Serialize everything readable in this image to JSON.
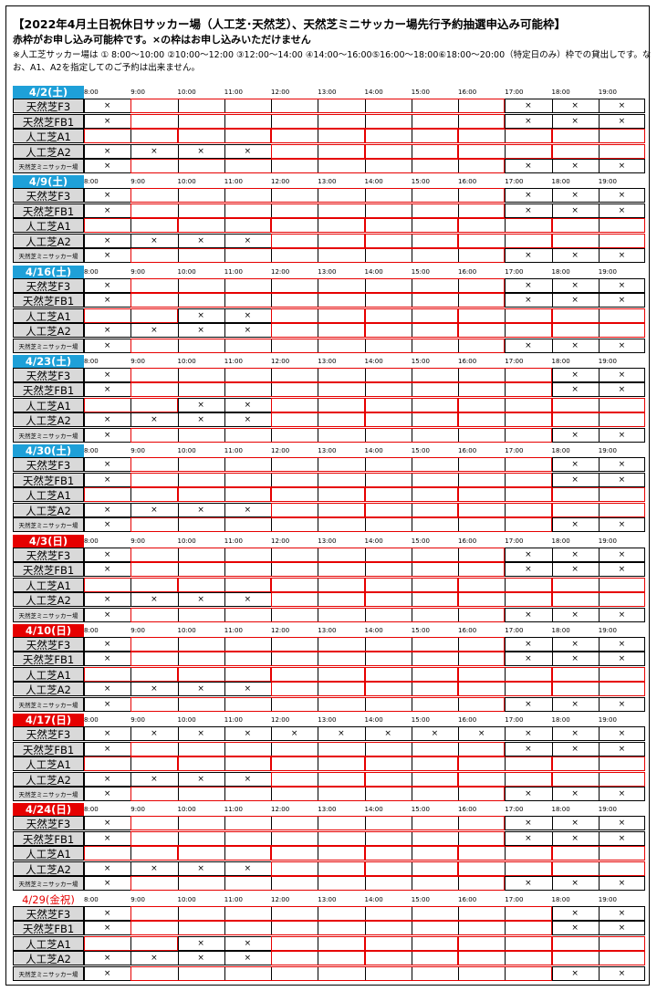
{
  "header": {
    "title": "【2022年4月土日祝休日サッカー場（人工芝･天然芝）、天然芝ミニサッカー場先行予約抽選申込み可能枠】",
    "subtitle": "赤枠がお申し込み可能枠です。×の枠はお申し込みいただけません",
    "note_line1": "※人工芝サッカー場は ① 8:00～10:00 ②10:00～12:00 ③12:00～14:00 ④14:00～16:00⑤16:00～18:00⑥18:00～20:00（特定日のみ）枠での貸出しです。な",
    "note_line2": "お、A1、A2を指定してのご予約は出来ません。"
  },
  "times": [
    "8:00",
    "9:00",
    "10:00",
    "11:00",
    "12:00",
    "13:00",
    "14:00",
    "15:00",
    "16:00",
    "17:00",
    "18:00",
    "19:00"
  ],
  "courts": [
    "天然芝F3",
    "天然芝FB1",
    "人工芝A1",
    "人工芝A2",
    "天然芝ミニサッカー場"
  ],
  "colors": {
    "saturday": "#1ea0d8",
    "sunday": "#e60000",
    "available_border": "#e60000",
    "label_bg": "#d9d9d9"
  },
  "days": [
    {
      "date": "4/2(土)",
      "type": "sat",
      "rows": [
        {
          "x": [
            0,
            9,
            10,
            11
          ],
          "r": [
            [
              1,
              9
            ]
          ]
        },
        {
          "x": [
            0,
            9,
            10,
            11
          ],
          "r": [
            [
              1,
              9
            ]
          ]
        },
        {
          "x": [],
          "r": [
            [
              0,
              2
            ],
            [
              2,
              4
            ],
            [
              4,
              6
            ],
            [
              6,
              8
            ],
            [
              8,
              10
            ],
            [
              10,
              12
            ]
          ]
        },
        {
          "x": [
            0,
            1,
            2,
            3
          ],
          "r": [
            [
              4,
              6
            ],
            [
              6,
              8
            ],
            [
              8,
              10
            ],
            [
              10,
              12
            ]
          ]
        },
        {
          "x": [
            0,
            9,
            10,
            11
          ],
          "r": [
            [
              1,
              9
            ]
          ]
        }
      ]
    },
    {
      "date": "4/9(土)",
      "type": "sat",
      "rows": [
        {
          "x": [
            0,
            9,
            10,
            11
          ],
          "r": [
            [
              1,
              9
            ]
          ]
        },
        {
          "x": [
            0,
            9,
            10,
            11
          ],
          "r": [
            [
              1,
              9
            ]
          ]
        },
        {
          "x": [],
          "r": [
            [
              0,
              2
            ],
            [
              2,
              4
            ],
            [
              4,
              6
            ],
            [
              6,
              8
            ],
            [
              8,
              10
            ],
            [
              10,
              12
            ]
          ]
        },
        {
          "x": [
            0,
            1,
            2,
            3
          ],
          "r": [
            [
              4,
              6
            ],
            [
              6,
              8
            ],
            [
              8,
              10
            ],
            [
              10,
              12
            ]
          ]
        },
        {
          "x": [
            0,
            9,
            10,
            11
          ],
          "r": [
            [
              1,
              9
            ]
          ]
        }
      ]
    },
    {
      "date": "4/16(土)",
      "type": "sat",
      "rows": [
        {
          "x": [
            0,
            9,
            10,
            11
          ],
          "r": [
            [
              1,
              9
            ]
          ]
        },
        {
          "x": [
            0,
            9,
            10,
            11
          ],
          "r": [
            [
              1,
              9
            ]
          ]
        },
        {
          "x": [
            2,
            3
          ],
          "r": [
            [
              0,
              2
            ],
            [
              4,
              6
            ],
            [
              6,
              8
            ],
            [
              8,
              10
            ],
            [
              10,
              12
            ]
          ]
        },
        {
          "x": [
            0,
            1,
            2,
            3
          ],
          "r": [
            [
              4,
              6
            ],
            [
              6,
              8
            ],
            [
              8,
              10
            ],
            [
              10,
              12
            ]
          ]
        },
        {
          "x": [
            0,
            9,
            10,
            11
          ],
          "r": [
            [
              1,
              9
            ]
          ]
        }
      ]
    },
    {
      "date": "4/23(土)",
      "type": "sat",
      "rows": [
        {
          "x": [
            0,
            10,
            11
          ],
          "r": [
            [
              1,
              10
            ]
          ]
        },
        {
          "x": [
            0,
            10,
            11
          ],
          "r": [
            [
              1,
              10
            ]
          ]
        },
        {
          "x": [
            2,
            3
          ],
          "r": [
            [
              0,
              2
            ],
            [
              4,
              6
            ],
            [
              6,
              8
            ],
            [
              8,
              10
            ],
            [
              10,
              12
            ]
          ]
        },
        {
          "x": [
            0,
            1,
            2,
            3
          ],
          "r": [
            [
              4,
              6
            ],
            [
              6,
              8
            ],
            [
              8,
              10
            ],
            [
              10,
              12
            ]
          ]
        },
        {
          "x": [
            0,
            10,
            11
          ],
          "r": [
            [
              1,
              10
            ]
          ]
        }
      ]
    },
    {
      "date": "4/30(土)",
      "type": "sat",
      "rows": [
        {
          "x": [
            0,
            10,
            11
          ],
          "r": [
            [
              1,
              10
            ]
          ]
        },
        {
          "x": [
            0,
            10,
            11
          ],
          "r": [
            [
              1,
              10
            ]
          ]
        },
        {
          "x": [],
          "r": [
            [
              0,
              2
            ],
            [
              2,
              4
            ],
            [
              4,
              6
            ],
            [
              6,
              8
            ],
            [
              8,
              10
            ],
            [
              10,
              12
            ]
          ]
        },
        {
          "x": [
            0,
            1,
            2,
            3
          ],
          "r": [
            [
              4,
              6
            ],
            [
              6,
              8
            ],
            [
              8,
              10
            ],
            [
              10,
              12
            ]
          ]
        },
        {
          "x": [
            0,
            10,
            11
          ],
          "r": [
            [
              1,
              10
            ]
          ]
        }
      ]
    },
    {
      "date": "4/3(日)",
      "type": "sun",
      "rows": [
        {
          "x": [
            0,
            9,
            10,
            11
          ],
          "r": [
            [
              1,
              9
            ]
          ]
        },
        {
          "x": [
            0,
            9,
            10,
            11
          ],
          "r": [
            [
              1,
              9
            ]
          ]
        },
        {
          "x": [],
          "r": [
            [
              0,
              2
            ],
            [
              2,
              4
            ],
            [
              4,
              6
            ],
            [
              6,
              8
            ],
            [
              8,
              10
            ],
            [
              10,
              12
            ]
          ]
        },
        {
          "x": [
            0,
            1,
            2,
            3
          ],
          "r": [
            [
              4,
              6
            ],
            [
              6,
              8
            ],
            [
              8,
              10
            ],
            [
              10,
              12
            ]
          ]
        },
        {
          "x": [
            0,
            9,
            10,
            11
          ],
          "r": [
            [
              1,
              9
            ]
          ]
        }
      ]
    },
    {
      "date": "4/10(日)",
      "type": "sun",
      "rows": [
        {
          "x": [
            0,
            9,
            10,
            11
          ],
          "r": [
            [
              1,
              9
            ]
          ]
        },
        {
          "x": [
            0,
            9,
            10,
            11
          ],
          "r": [
            [
              1,
              9
            ]
          ]
        },
        {
          "x": [],
          "r": [
            [
              0,
              2
            ],
            [
              2,
              4
            ],
            [
              4,
              6
            ],
            [
              6,
              8
            ],
            [
              8,
              10
            ],
            [
              10,
              12
            ]
          ]
        },
        {
          "x": [
            0,
            1,
            2,
            3
          ],
          "r": [
            [
              4,
              6
            ],
            [
              6,
              8
            ],
            [
              8,
              10
            ],
            [
              10,
              12
            ]
          ]
        },
        {
          "x": [
            0,
            9,
            10,
            11
          ],
          "r": [
            [
              1,
              9
            ]
          ]
        }
      ]
    },
    {
      "date": "4/17(日)",
      "type": "sun",
      "rows": [
        {
          "x": [
            0,
            1,
            2,
            3,
            4,
            5,
            6,
            7,
            8,
            9,
            10,
            11
          ],
          "r": []
        },
        {
          "x": [
            0,
            9,
            10,
            11
          ],
          "r": [
            [
              1,
              9
            ]
          ]
        },
        {
          "x": [],
          "r": [
            [
              0,
              2
            ],
            [
              2,
              4
            ],
            [
              4,
              6
            ],
            [
              6,
              8
            ],
            [
              8,
              10
            ],
            [
              10,
              12
            ]
          ]
        },
        {
          "x": [
            0,
            1,
            2,
            3
          ],
          "r": [
            [
              4,
              6
            ],
            [
              6,
              8
            ],
            [
              8,
              10
            ],
            [
              10,
              12
            ]
          ]
        },
        {
          "x": [
            0,
            9,
            10,
            11
          ],
          "r": [
            [
              1,
              9
            ]
          ]
        }
      ]
    },
    {
      "date": "4/24(日)",
      "type": "sun",
      "rows": [
        {
          "x": [
            0,
            9,
            10,
            11
          ],
          "r": [
            [
              1,
              9
            ]
          ]
        },
        {
          "x": [
            0,
            9,
            10,
            11
          ],
          "r": [
            [
              1,
              9
            ]
          ]
        },
        {
          "x": [],
          "r": [
            [
              0,
              2
            ],
            [
              2,
              4
            ],
            [
              4,
              6
            ],
            [
              6,
              8
            ],
            [
              8,
              10
            ],
            [
              10,
              12
            ]
          ]
        },
        {
          "x": [
            0,
            1,
            2,
            3
          ],
          "r": [
            [
              4,
              6
            ],
            [
              6,
              8
            ],
            [
              8,
              10
            ],
            [
              10,
              12
            ]
          ]
        },
        {
          "x": [
            0,
            9,
            10,
            11
          ],
          "r": [
            [
              1,
              9
            ]
          ]
        }
      ]
    },
    {
      "date": "4/29(金祝)",
      "type": "hol",
      "rows": [
        {
          "x": [
            0,
            10,
            11
          ],
          "r": [
            [
              1,
              10
            ]
          ]
        },
        {
          "x": [
            0,
            10,
            11
          ],
          "r": [
            [
              1,
              10
            ]
          ]
        },
        {
          "x": [
            2,
            3
          ],
          "r": [
            [
              0,
              2
            ],
            [
              4,
              6
            ],
            [
              6,
              8
            ],
            [
              8,
              10
            ],
            [
              10,
              12
            ]
          ]
        },
        {
          "x": [
            0,
            1,
            2,
            3
          ],
          "r": [
            [
              4,
              6
            ],
            [
              6,
              8
            ],
            [
              8,
              10
            ],
            [
              10,
              12
            ]
          ]
        },
        {
          "x": [
            0,
            10,
            11
          ],
          "r": [
            [
              1,
              10
            ]
          ]
        }
      ]
    }
  ],
  "mark_symbol": "×"
}
